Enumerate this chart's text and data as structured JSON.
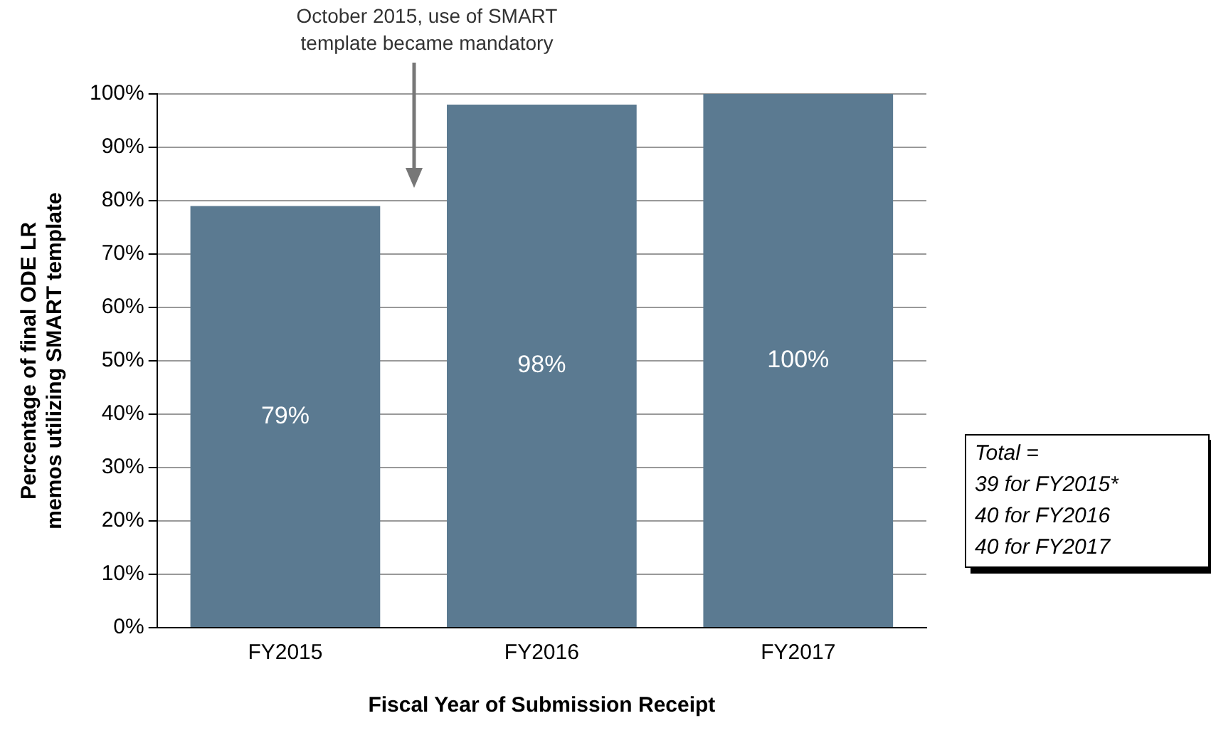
{
  "chart_data": {
    "type": "bar",
    "categories": [
      "FY2015",
      "FY2016",
      "FY2017"
    ],
    "values": [
      79,
      98,
      100
    ],
    "value_labels": [
      "79%",
      "98%",
      "100%"
    ],
    "color": "#5b7a91",
    "xlabel": "Fiscal Year of Submission Receipt",
    "ylabel": "Percentage of final ODE LR memos utilizing SMART template",
    "ylim": [
      0,
      100
    ],
    "yticks": [
      {
        "value": 0,
        "label": "0%"
      },
      {
        "value": 10,
        "label": "10%"
      },
      {
        "value": 20,
        "label": "20%"
      },
      {
        "value": 30,
        "label": "30%"
      },
      {
        "value": 40,
        "label": "40%"
      },
      {
        "value": 50,
        "label": "50%"
      },
      {
        "value": 60,
        "label": "60%"
      },
      {
        "value": 70,
        "label": "70%"
      },
      {
        "value": 80,
        "label": "80%"
      },
      {
        "value": 90,
        "label": "90%"
      },
      {
        "value": 100,
        "label": "100%"
      }
    ],
    "grid": "y",
    "legend": false,
    "annotations": [
      "October 2015, use of SMART template became mandatory",
      "Total =\n39 for FY2015*\n40 for FY2016\n40 for FY2017"
    ]
  }
}
